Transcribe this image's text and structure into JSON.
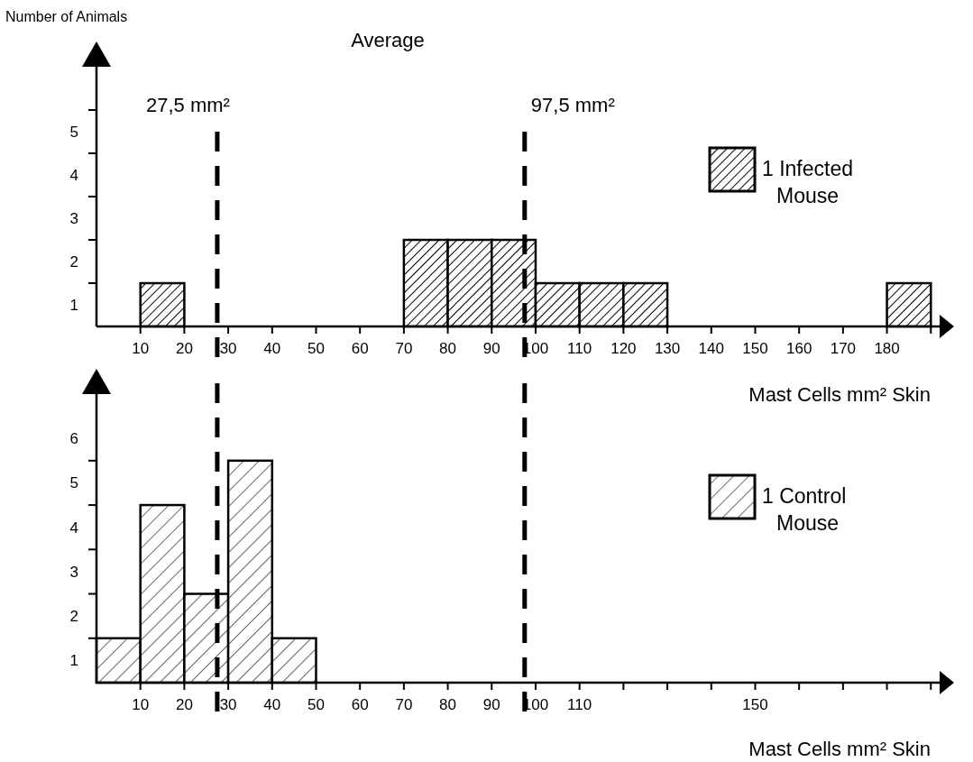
{
  "chart_data": [
    {
      "type": "histogram",
      "title": "Average",
      "ylabel": "Number of Animals",
      "xlabel": "Mast Cells mm² Skin",
      "bins": [
        0,
        10,
        20,
        30,
        40,
        50,
        60,
        70,
        80,
        90,
        100,
        110,
        120,
        130,
        140,
        150,
        160,
        170,
        180,
        190
      ],
      "series": [
        {
          "name": "1 Infected Mouse",
          "color": "#000000",
          "values": [
            0,
            1,
            0,
            0,
            0,
            0,
            0,
            2,
            2,
            2,
            1,
            1,
            1,
            0,
            0,
            0,
            0,
            0,
            1
          ]
        }
      ],
      "xlim": [
        0,
        192
      ],
      "ylim": [
        0,
        6
      ],
      "xticks": [
        10,
        20,
        30,
        40,
        50,
        60,
        70,
        80,
        90,
        100,
        110,
        120,
        130,
        140,
        150,
        160,
        170,
        180,
        {
          "value": 190,
          "label": null
        }
      ],
      "yticks": [
        {
          "value": 0.5,
          "label": "1"
        },
        {
          "value": 1.5,
          "label": "2"
        },
        {
          "value": 2.5,
          "label": "3"
        },
        {
          "value": 3.5,
          "label": "4"
        },
        {
          "value": 4.5,
          "label": "5"
        },
        {
          "value": 1,
          "label": null
        },
        {
          "value": 2,
          "label": null
        },
        {
          "value": 3,
          "label": null
        },
        {
          "value": 4,
          "label": null
        },
        {
          "value": 5,
          "label": null
        }
      ],
      "ref_lines": [
        {
          "axis": "x",
          "value": 27.5,
          "label": "27,5 mm²",
          "color": "#000000",
          "line_style": "dashed"
        },
        {
          "axis": "x",
          "value": 97.5,
          "label": "97,5 mm²",
          "color": "#000000",
          "line_style": "dashed"
        }
      ],
      "legend": "right",
      "grid": false
    },
    {
      "type": "histogram",
      "xlabel": "Mast Cells mm² Skin",
      "bins": [
        0,
        10,
        20,
        30,
        40,
        50
      ],
      "series": [
        {
          "name": "1 Control Mouse",
          "color": "#000000",
          "values": [
            1,
            4,
            2,
            5,
            1
          ]
        }
      ],
      "xlim": [
        0,
        192
      ],
      "ylim": [
        0,
        6.5
      ],
      "xticks": [
        10,
        20,
        30,
        40,
        50,
        60,
        70,
        80,
        90,
        100,
        110,
        {
          "value": 120,
          "label": null
        },
        {
          "value": 130,
          "label": null
        },
        {
          "value": 140,
          "label": null
        },
        150,
        {
          "value": 160,
          "label": null
        },
        {
          "value": 170,
          "label": null
        },
        {
          "value": 180,
          "label": null
        },
        {
          "value": 190,
          "label": null
        }
      ],
      "yticks": [
        {
          "value": 0.5,
          "label": "1"
        },
        {
          "value": 1.5,
          "label": "2"
        },
        {
          "value": 2.5,
          "label": "3"
        },
        {
          "value": 3.5,
          "label": "4"
        },
        {
          "value": 4.5,
          "label": "5"
        },
        {
          "value": 5.5,
          "label": "6"
        },
        {
          "value": 1,
          "label": null
        },
        {
          "value": 2,
          "label": null
        },
        {
          "value": 3,
          "label": null
        },
        {
          "value": 4,
          "label": null
        },
        {
          "value": 5,
          "label": null
        }
      ],
      "ref_lines": [
        {
          "axis": "x",
          "value": 27.5,
          "label": null,
          "color": "#000000",
          "line_style": "dashed"
        },
        {
          "axis": "x",
          "value": 97.5,
          "label": null,
          "color": "#000000",
          "line_style": "dashed"
        }
      ],
      "legend": "right",
      "grid": false
    }
  ]
}
